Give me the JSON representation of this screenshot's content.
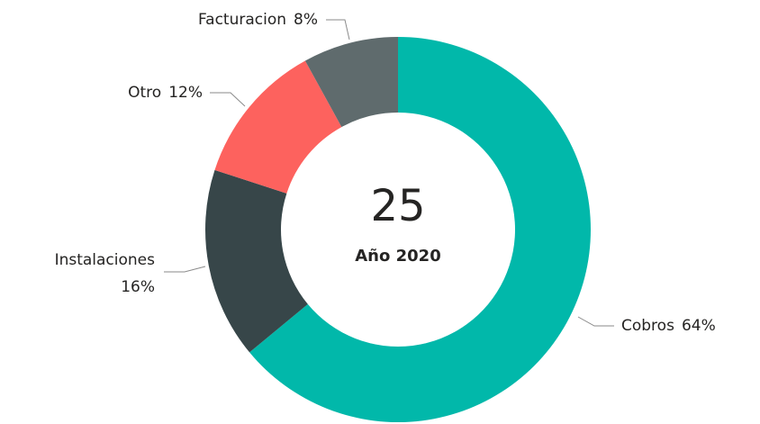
{
  "chart_data": {
    "type": "donut",
    "categories": [
      "Cobros",
      "Instalaciones",
      "Otro",
      "Facturacion"
    ],
    "values": [
      64,
      16,
      12,
      8
    ],
    "value_labels": [
      "64%",
      "16%",
      "12%",
      "8%"
    ],
    "colors": [
      "#01b8aa",
      "#374649",
      "#fd625e",
      "#5f6b6d"
    ],
    "center_value": 25,
    "center_label": "Año 2020"
  }
}
